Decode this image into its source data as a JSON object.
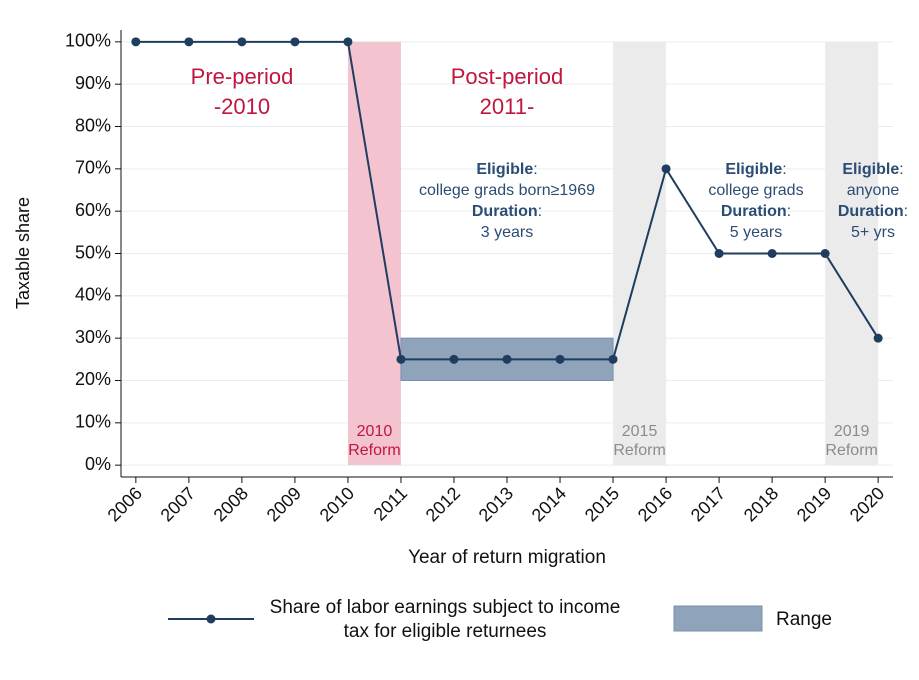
{
  "chart_data": {
    "type": "line",
    "x_label": "Year of return migration",
    "y_label": "Taxable share",
    "x": [
      2006,
      2007,
      2008,
      2009,
      2010,
      2011,
      2012,
      2013,
      2014,
      2015,
      2016,
      2017,
      2018,
      2019,
      2020
    ],
    "series": [
      {
        "name": "Share of labor earnings subject to income tax for eligible returnees",
        "color": "#1f3d5e",
        "values": [
          100,
          100,
          100,
          100,
          100,
          25,
          25,
          25,
          25,
          25,
          70,
          50,
          50,
          50,
          30
        ]
      }
    ],
    "range": {
      "name": "Range",
      "color": "#8fa4ba",
      "x": [
        2011,
        2015
      ],
      "values": [
        20,
        30
      ]
    },
    "shaded_periods": [
      {
        "x": [
          2010,
          2011
        ],
        "color": "#f3c3cf",
        "label": [
          "2010",
          "Reform"
        ],
        "label_color": "#c0173f"
      },
      {
        "x": [
          2015,
          2016
        ],
        "color": "#ebebeb",
        "label": [
          "2015",
          "Reform"
        ],
        "label_color": "#8c8c8c"
      },
      {
        "x": [
          2019,
          2020
        ],
        "color": "#ebebeb",
        "label": [
          "2019",
          "Reform"
        ],
        "label_color": "#8c8c8c"
      }
    ],
    "annotations": [
      {
        "lines": [
          "Pre-period",
          "-2010"
        ],
        "color": "#c0173f"
      },
      {
        "lines": [
          "Post-period",
          "2011-"
        ],
        "color": "#c0173f"
      },
      {
        "lines": [
          [
            "Eligible",
            ":"
          ],
          [
            "college grads born≥1969"
          ],
          [
            "Duration",
            ":"
          ],
          [
            "3 years"
          ]
        ],
        "color": "#2b4d73"
      },
      {
        "lines": [
          [
            "Eligible",
            ":"
          ],
          [
            "college grads"
          ],
          [
            "Duration",
            ":"
          ],
          [
            "5 years"
          ]
        ],
        "color": "#2b4d73"
      },
      {
        "lines": [
          [
            "Eligible",
            ":"
          ],
          [
            "anyone"
          ],
          [
            "Duration",
            ":"
          ],
          [
            "5+ yrs"
          ]
        ],
        "color": "#2b4d73"
      }
    ],
    "xlim": [
      2005.72,
      2020.28
    ],
    "ylim": [
      -2.8,
      102.8
    ],
    "xticks": [
      2006,
      2007,
      2008,
      2009,
      2010,
      2011,
      2012,
      2013,
      2014,
      2015,
      2016,
      2017,
      2018,
      2019,
      2020
    ],
    "yticks": [
      {
        "value": 0,
        "label": "0%"
      },
      {
        "value": 10,
        "label": "10%"
      },
      {
        "value": 20,
        "label": "20%"
      },
      {
        "value": 30,
        "label": "30%"
      },
      {
        "value": 40,
        "label": "40%"
      },
      {
        "value": 50,
        "label": "50%"
      },
      {
        "value": 60,
        "label": "60%"
      },
      {
        "value": 70,
        "label": "70%"
      },
      {
        "value": 80,
        "label": "80%"
      },
      {
        "value": 90,
        "label": "90%"
      },
      {
        "value": 100,
        "label": "100%"
      }
    ],
    "grid": true
  }
}
